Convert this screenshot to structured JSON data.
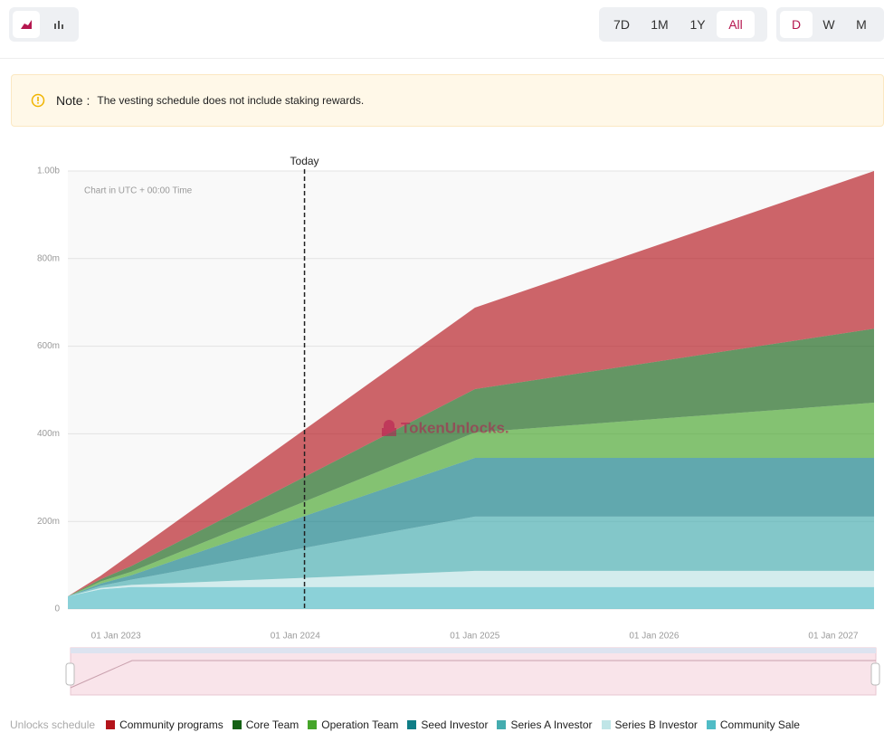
{
  "toolbar": {
    "ranges": [
      "7D",
      "1M",
      "1Y",
      "All"
    ],
    "active_range": "All",
    "intervals": [
      "D",
      "W",
      "M"
    ],
    "active_interval": "D"
  },
  "note": {
    "label": "Note :",
    "text": "The vesting schedule does not include staking rewards."
  },
  "chart_data": {
    "type": "area",
    "stacked": true,
    "subtitle": "Chart in UTC + 00:00 Time",
    "watermark": "TokenUnlocks.",
    "legend_title": "Unlocks schedule",
    "x": [
      "2022-09-25",
      "2022-12-01",
      "2023-02-01",
      "2025-01-01",
      "2027-03-25"
    ],
    "xlim": [
      "2022-09-25",
      "2027-03-25"
    ],
    "xticks": [
      {
        "value": "2023-01-01",
        "label": "01 Jan 2023"
      },
      {
        "value": "2024-01-01",
        "label": "01 Jan 2024"
      },
      {
        "value": "2025-01-01",
        "label": "01 Jan 2025"
      },
      {
        "value": "2026-01-01",
        "label": "01 Jan 2026"
      },
      {
        "value": "2027-01-01",
        "label": "01 Jan 2027"
      }
    ],
    "ylim": [
      0,
      1000
    ],
    "yticks": [
      0,
      {
        "value": 200,
        "label": "200m"
      },
      {
        "value": 400,
        "label": "400m"
      },
      {
        "value": 600,
        "label": "600m"
      },
      {
        "value": 800,
        "label": "800m"
      },
      {
        "value": 1000,
        "label": "1.00b"
      }
    ],
    "grid": true,
    "today": {
      "label": "Today",
      "x": "2024-01-20"
    },
    "series": [
      {
        "name": "Community programs",
        "color": "#b3141b",
        "values": [
          0,
          8,
          28,
          186,
          360
        ]
      },
      {
        "name": "Core Team",
        "color": "#146114",
        "values": [
          0,
          5,
          13,
          99,
          169
        ]
      },
      {
        "name": "Operation Team",
        "color": "#45a52a",
        "values": [
          0,
          5,
          8,
          58,
          126
        ]
      },
      {
        "name": "Seed Investor",
        "color": "#0f7d86",
        "values": [
          0,
          5,
          10,
          134,
          134
        ]
      },
      {
        "name": "Series A Investor",
        "color": "#44acaf",
        "values": [
          0,
          5,
          12,
          124,
          124
        ]
      },
      {
        "name": "Series B Investor",
        "color": "#bfe5e7",
        "values": [
          0,
          3,
          5,
          37,
          37
        ]
      },
      {
        "name": "Community Sale",
        "color": "#50bcc6",
        "values": [
          29,
          45,
          50,
          50,
          50
        ]
      }
    ]
  }
}
